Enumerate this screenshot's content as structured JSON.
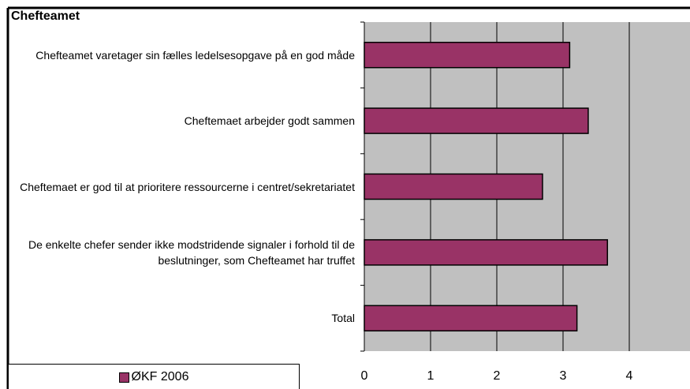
{
  "chart_data": {
    "type": "bar",
    "orientation": "horizontal",
    "title": "Chefteamet",
    "categories": [
      "Chefteamet varetager sin fælles ledelsesopgave på en god måde",
      "Cheftemaet arbejder godt sammen",
      "Cheftemaet er god til at prioritere ressourcerne i centret/sekretariatet",
      "De enkelte chefer sender ikke modstridende signaler i forhold til de beslutninger, som Chefteamet har truffet",
      "Total"
    ],
    "series": [
      {
        "name": "ØKF 2006",
        "color": "#993366",
        "values": [
          3.1,
          3.38,
          2.69,
          3.67,
          3.21
        ]
      }
    ],
    "xlim": [
      0,
      5
    ],
    "xticks": [
      0,
      1,
      2,
      3,
      4
    ],
    "grid": true,
    "plot_background": "#c0c0c0"
  }
}
